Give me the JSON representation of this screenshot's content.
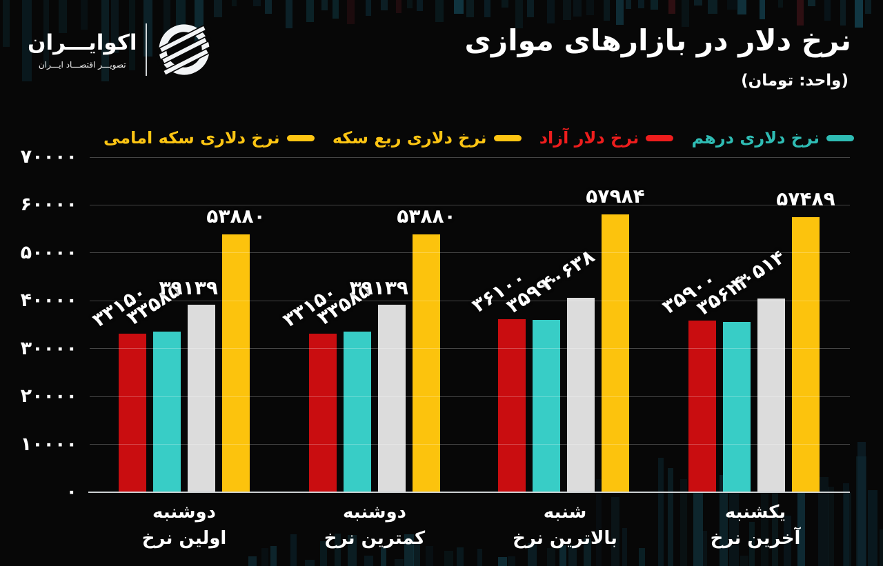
{
  "brand": {
    "name": "اکوایـــران",
    "tagline": "تصویـــر اقتصـــاد ایـــران",
    "logo_icon": "ecoiran-striped-globe-icon"
  },
  "header": {
    "title": "نرخ دلار در بازارهای موازی",
    "subtitle": "(واحد: تومان)"
  },
  "legend": [
    {
      "label": "نرخ دلاری سکه امامی",
      "color": "#fdc513"
    },
    {
      "label": "نرخ دلاری ربع سکه",
      "color": "#fdc513"
    },
    {
      "label": "نرخ دلار آزاد",
      "color": "#ee1d1d"
    },
    {
      "label": "نرخ دلاری درهم",
      "color": "#2fbcb4"
    }
  ],
  "chart_data": {
    "type": "bar",
    "title": "نرخ دلار در بازارهای موازی",
    "unit": "تومان",
    "grid": true,
    "legend_position": "top",
    "y_axis": {
      "min": 0,
      "max": 70000,
      "tick_step": 10000,
      "tick_labels": [
        "۰",
        "۱۰۰۰۰",
        "۲۰۰۰۰",
        "۳۰۰۰۰",
        "۴۰۰۰۰",
        "۵۰۰۰۰",
        "۶۰۰۰۰",
        "۷۰۰۰۰"
      ]
    },
    "categories": [
      {
        "line1": "دوشنبه",
        "line2": "اولین نرخ"
      },
      {
        "line1": "دوشنبه",
        "line2": "کمترین نرخ"
      },
      {
        "line1": "شنبه",
        "line2": "بالاترین نرخ"
      },
      {
        "line1": "یکشنبه",
        "line2": "آخرین نرخ"
      }
    ],
    "series": [
      {
        "name": "نرخ دلار آزاد",
        "color": "#c90d10",
        "values": [
          33150,
          33150,
          36100,
          35900
        ],
        "value_labels": [
          "۳۳۱۵۰",
          "۳۳۱۵۰",
          "۳۶۱۰۰",
          "۳۵۹۰۰"
        ]
      },
      {
        "name": "نرخ دلاری درهم",
        "color": "#38cdc6",
        "values": [
          33585,
          33585,
          35990,
          35623
        ],
        "value_labels": [
          "۳۳۵۸۵",
          "۳۳۵۸۵",
          "۳۵۹۹۰",
          "۳۵۶۲۳"
        ]
      },
      {
        "name": "نرخ دلاری ربع سکه",
        "color": "#dcdcdc",
        "values": [
          39139,
          39139,
          40638,
          40514
        ],
        "value_labels": [
          "۳۹۱۳۹",
          "۳۹۱۳۹",
          "۴۰۶۳۸",
          "۴۰۵۱۴"
        ]
      },
      {
        "name": "نرخ دلاری سکه امامی",
        "color": "#fcc30d",
        "values": [
          53880,
          53880,
          57984,
          57489
        ],
        "value_labels": [
          "۵۳۸۸۰",
          "۵۳۸۸۰",
          "۵۷۹۸۴",
          "۵۷۴۸۹"
        ]
      }
    ]
  }
}
